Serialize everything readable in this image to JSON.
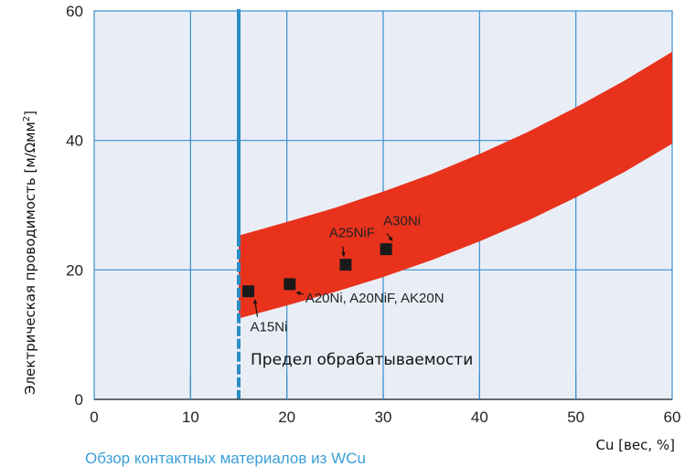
{
  "chart_data": {
    "type": "scatter",
    "ylabel": "Электрическая проводимость [м/Ωмм",
    "ylabel_superscript": "2",
    "ylabel_close": "]",
    "xlabel": "Cu [вес, %]",
    "xlim": [
      0,
      60
    ],
    "ylim": [
      0,
      60
    ],
    "x_ticks": [
      0,
      10,
      20,
      30,
      40,
      50,
      60
    ],
    "y_ticks": [
      0,
      20,
      40,
      60
    ],
    "grid": true,
    "band": {
      "color": "#e8321c",
      "x": [
        15,
        20,
        25,
        30,
        35,
        40,
        45,
        50,
        55,
        60
      ],
      "lower": [
        12.5,
        14.5,
        16.6,
        18.9,
        21.5,
        24.4,
        27.6,
        31.2,
        35.1,
        39.5
      ],
      "upper": [
        25.3,
        27.4,
        29.6,
        32.1,
        34.8,
        37.9,
        41.3,
        45.1,
        49.2,
        53.7
      ]
    },
    "points": [
      {
        "x": 16,
        "y": 16.7,
        "label": "A15Ni"
      },
      {
        "x": 20.3,
        "y": 17.8,
        "label": "A20Ni, A20NiF, AK20N"
      },
      {
        "x": 26.1,
        "y": 20.8,
        "label": "A25NiF"
      },
      {
        "x": 30.3,
        "y": 23.2,
        "label": "A30Ni"
      }
    ],
    "machinability_limit": {
      "x": 15,
      "label": "Предел обрабатываемости",
      "color": "#2b8cc4"
    }
  },
  "caption": "Обзор контактных материалов из WCu",
  "colors": {
    "plot_bg": "#e9eef6",
    "grid": "#3b8fcf",
    "axis": "#444444",
    "marker": "#1a1a1a"
  }
}
